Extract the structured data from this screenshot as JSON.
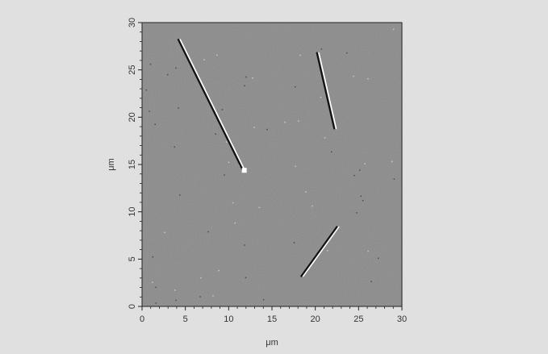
{
  "figure": {
    "kind": "AFM microscopy image",
    "xlabel": "μm",
    "ylabel": "μm",
    "xlim": [
      0,
      30
    ],
    "ylim": [
      0,
      30
    ],
    "x_ticks": [
      "0",
      "5",
      "10",
      "15",
      "20",
      "25",
      "30"
    ],
    "y_ticks": [
      "0",
      "5",
      "10",
      "15",
      "20",
      "25",
      "30"
    ],
    "colors": {
      "background": "#e0e0e0",
      "surface": "#8a8a8a",
      "frame": "#222222",
      "highlight": "#ffffff",
      "shadow": "#111111"
    },
    "features": [
      {
        "name": "nanowire-left",
        "start": [
          4.3,
          28.2
        ],
        "end": [
          11.8,
          14.3
        ]
      },
      {
        "name": "nanowire-right",
        "start": [
          20.3,
          26.8
        ],
        "end": [
          22.3,
          18.8
        ]
      },
      {
        "name": "nanowire-lower",
        "start": [
          18.5,
          3.2
        ],
        "end": [
          22.6,
          8.4
        ]
      }
    ]
  }
}
